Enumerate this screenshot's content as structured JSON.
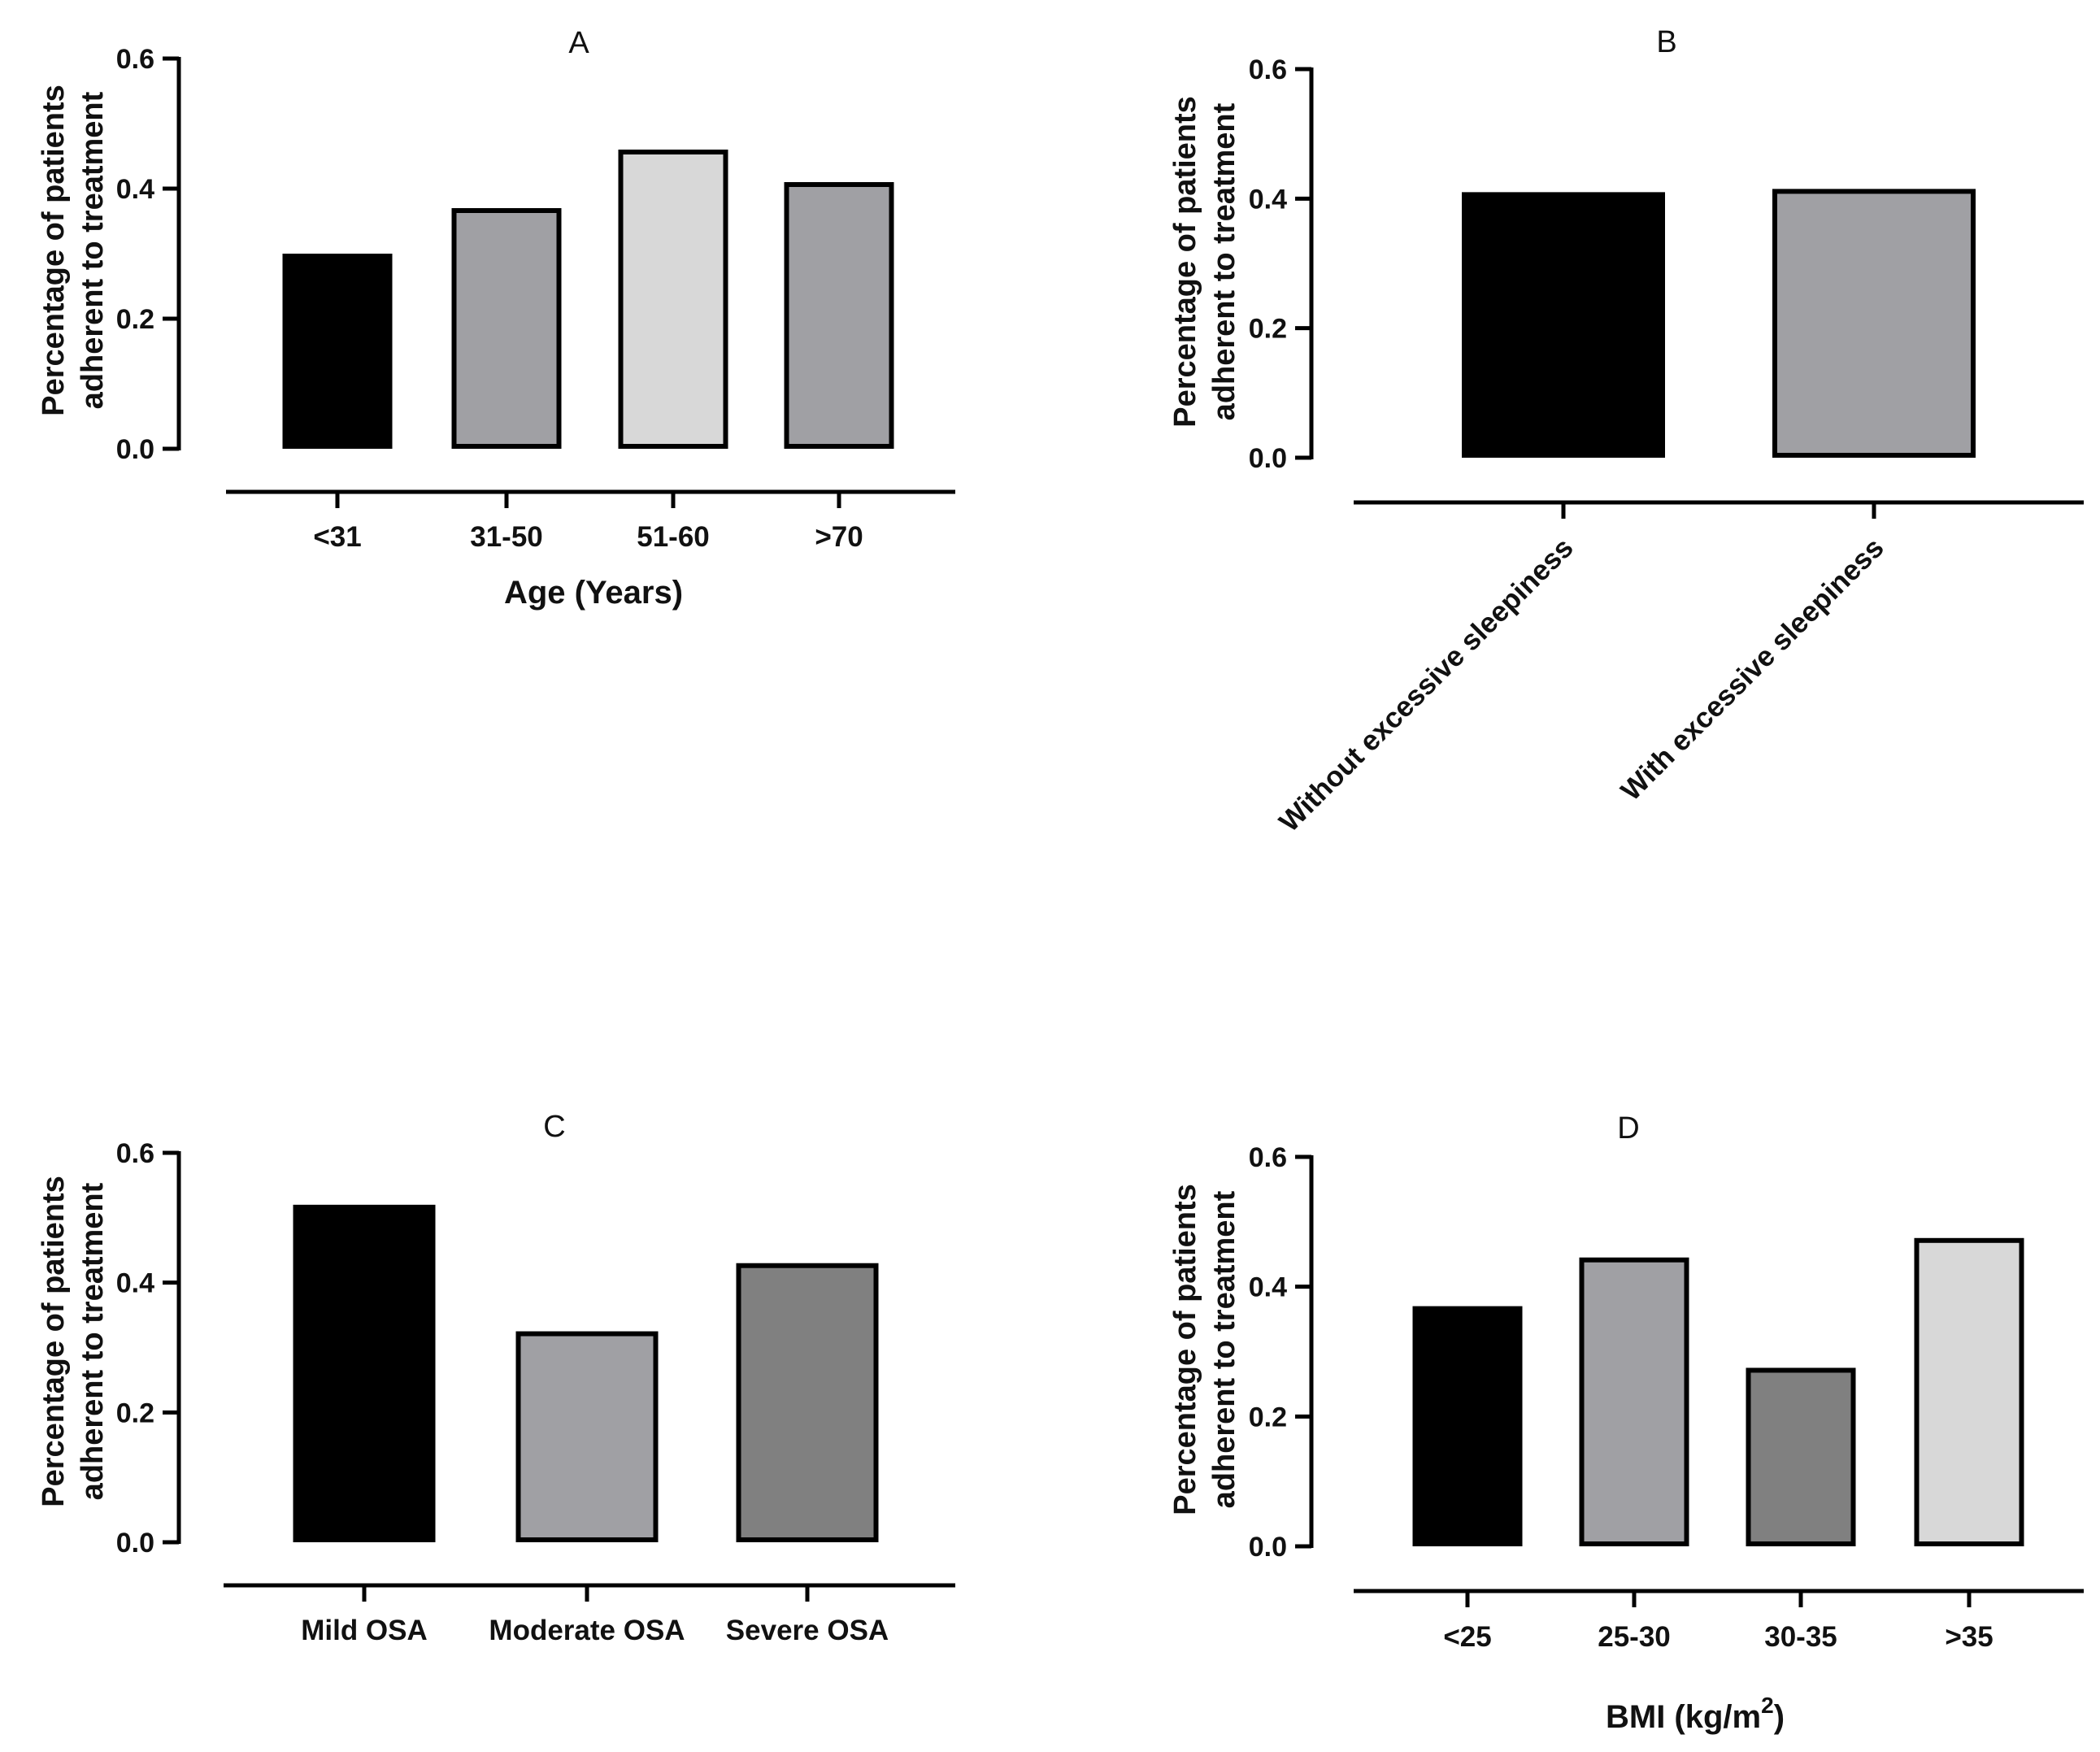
{
  "chart_data": [
    {
      "type": "bar",
      "title": "A",
      "categories": [
        "<31",
        "31-50",
        "51-60",
        ">70"
      ],
      "values": [
        0.3,
        0.37,
        0.46,
        0.41
      ],
      "colors": [
        "#000000",
        "#a0a0a4",
        "#d8d8d8",
        "#a0a0a4"
      ],
      "ylabel_lines": [
        "Percentage of patients",
        "adherent to treatment"
      ],
      "xlabel": "Age (Years)",
      "xlabel_sup": "",
      "xlabel_suffix": "",
      "ylim": [
        0,
        0.6
      ],
      "yticks": [
        "0.0",
        "0.2",
        "0.4",
        "0.6"
      ],
      "ytick_values": [
        0,
        0.2,
        0.4,
        0.6
      ]
    },
    {
      "type": "bar",
      "title": "B",
      "categories": [
        "Without excessive sleepiness",
        "With excessive sleepiness"
      ],
      "values": [
        0.41,
        0.415
      ],
      "colors": [
        "#000000",
        "#a0a0a4"
      ],
      "ylabel_lines": [
        "Percentage of patients",
        "adherent to treatment"
      ],
      "xlabel": "",
      "xlabel_sup": "",
      "xlabel_suffix": "",
      "ylim": [
        0,
        0.6
      ],
      "yticks": [
        "0.0",
        "0.2",
        "0.4",
        "0.6"
      ],
      "ytick_values": [
        0,
        0.2,
        0.4,
        0.6
      ]
    },
    {
      "type": "bar",
      "title": "C",
      "categories": [
        "Mild OSA",
        "Moderate OSA",
        "Severe OSA"
      ],
      "values": [
        0.52,
        0.325,
        0.43
      ],
      "colors": [
        "#000000",
        "#a0a0a4",
        "#808080"
      ],
      "ylabel_lines": [
        "Percentage of patients",
        "adherent to treatment"
      ],
      "xlabel": "",
      "xlabel_sup": "",
      "xlabel_suffix": "",
      "ylim": [
        0,
        0.6
      ],
      "yticks": [
        "0.0",
        "0.2",
        "0.4",
        "0.6"
      ],
      "ytick_values": [
        0,
        0.2,
        0.4,
        0.6
      ]
    },
    {
      "type": "bar",
      "title": "D",
      "categories": [
        "<25",
        "25-30",
        "30-35",
        ">35"
      ],
      "values": [
        0.37,
        0.445,
        0.275,
        0.475
      ],
      "colors": [
        "#000000",
        "#a0a0a4",
        "#808080",
        "#d8d8d8"
      ],
      "ylabel_lines": [
        "Percentage of patients",
        "adherent to treatment"
      ],
      "xlabel": "BMI (kg/m",
      "xlabel_sup": "2",
      "xlabel_suffix": ")",
      "ylim": [
        0,
        0.6
      ],
      "yticks": [
        "0.0",
        "0.2",
        "0.4",
        "0.6"
      ],
      "ytick_values": [
        0,
        0.2,
        0.4,
        0.6
      ]
    }
  ]
}
